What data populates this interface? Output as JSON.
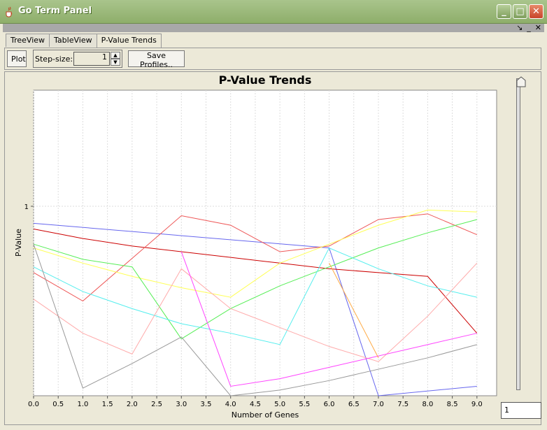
{
  "window": {
    "title": "Go Term Panel"
  },
  "inner_controls": [
    "↘",
    "_",
    "✕"
  ],
  "tabs": [
    {
      "label": "TreeView"
    },
    {
      "label": "TableView"
    },
    {
      "label": "P-Value Trends"
    }
  ],
  "toolbar": {
    "plot_label": "Plot",
    "step_size_label": "Step-size:",
    "step_size_value": "1",
    "save_profiles_label": "Save Profiles.."
  },
  "slider": {
    "value": "1"
  },
  "colors": {
    "titlebar": "#8EAE6A",
    "grid": "#DDDDDD"
  },
  "chart_data": {
    "type": "line",
    "title": "P-Value Trends",
    "xlabel": "Number of Genes",
    "ylabel": "P-Value",
    "xlim": [
      0,
      9.4
    ],
    "x_ticks": [
      "0.0",
      "0.5",
      "1.0",
      "1.5",
      "2.0",
      "2.5",
      "3.0",
      "3.5",
      "4.0",
      "4.5",
      "5.0",
      "5.5",
      "6.0",
      "6.5",
      "7.0",
      "7.5",
      "8.0",
      "8.5",
      "9.0"
    ],
    "y_ticks": [
      "1"
    ],
    "grid": true,
    "legend": "none",
    "series": [
      {
        "color": "#6666EE",
        "x": [
          0,
          6,
          7,
          9
        ],
        "y": [
          0.91,
          0.78,
          0.0,
          0.05
        ]
      },
      {
        "color": "#CC0000",
        "x": [
          0,
          1,
          2,
          3,
          4,
          5,
          6,
          7,
          8,
          9
        ],
        "y": [
          0.88,
          0.83,
          0.79,
          0.76,
          0.73,
          0.7,
          0.67,
          0.65,
          0.63,
          0.33
        ]
      },
      {
        "color": "#EE5555",
        "x": [
          0,
          1,
          3,
          4,
          5,
          6,
          7,
          8,
          9
        ],
        "y": [
          0.65,
          0.5,
          0.95,
          0.9,
          0.76,
          0.79,
          0.93,
          0.96,
          0.85
        ]
      },
      {
        "color": "#FFFF55",
        "x": [
          0,
          1,
          2,
          3,
          4,
          5,
          6,
          7,
          8,
          9
        ],
        "y": [
          0.78,
          0.7,
          0.63,
          0.57,
          0.52,
          0.7,
          0.8,
          0.9,
          0.98,
          0.97
        ]
      },
      {
        "color": "#55EE55",
        "x": [
          0,
          1,
          2,
          3,
          4,
          5,
          6,
          7,
          8,
          9
        ],
        "y": [
          0.8,
          0.72,
          0.68,
          0.3,
          0.46,
          0.58,
          0.68,
          0.78,
          0.86,
          0.93
        ]
      },
      {
        "color": "#55EEEE",
        "x": [
          0,
          1,
          2,
          3,
          4,
          5,
          6,
          7,
          8,
          9
        ],
        "y": [
          0.68,
          0.55,
          0.46,
          0.38,
          0.33,
          0.27,
          0.78,
          0.67,
          0.58,
          0.52
        ]
      },
      {
        "color": "#FFAAAA",
        "x": [
          0,
          1,
          2,
          3,
          4,
          5,
          6,
          7,
          8,
          9
        ],
        "y": [
          0.51,
          0.33,
          0.22,
          0.67,
          0.46,
          0.36,
          0.26,
          0.18,
          0.42,
          0.7
        ]
      },
      {
        "color": "#999999",
        "x": [
          0,
          1,
          2,
          3,
          4,
          5,
          6,
          7,
          8,
          9
        ],
        "y": [
          0.8,
          0.04,
          0.17,
          0.31,
          0.0,
          0.03,
          0.08,
          0.14,
          0.2,
          0.27
        ]
      },
      {
        "color": "#FF44FF",
        "x": [
          3,
          4,
          5,
          6,
          7,
          8,
          9
        ],
        "y": [
          0.76,
          0.05,
          0.09,
          0.15,
          0.21,
          0.27,
          0.33
        ]
      },
      {
        "color": "#FFAA44",
        "x": [
          6,
          7
        ],
        "y": [
          0.7,
          0.2
        ]
      }
    ]
  }
}
